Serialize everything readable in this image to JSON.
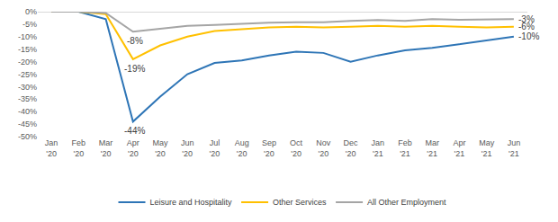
{
  "chart_data": {
    "type": "line",
    "categories": [
      "Jan '20",
      "Feb '20",
      "Mar '20",
      "Apr '20",
      "May '20",
      "Jun '20",
      "Jul '20",
      "Aug '20",
      "Sep '20",
      "Oct '20",
      "Nov '20",
      "Dec '20",
      "Jan '21",
      "Feb '21",
      "Mar '21",
      "Apr '21",
      "May '21",
      "Jun '21"
    ],
    "series": [
      {
        "name": "Leisure and Hospitality",
        "color": "#2e75b6",
        "values": [
          0,
          0,
          -3,
          -44,
          -34,
          -25,
          -20.5,
          -19.5,
          -17.5,
          -16,
          -16.5,
          -20,
          -17.5,
          -15.5,
          -14.5,
          -13,
          -11.5,
          -10
        ]
      },
      {
        "name": "Other Services",
        "color": "#ffc000",
        "values": [
          0,
          0,
          -1,
          -19,
          -13.5,
          -10,
          -7.7,
          -7,
          -6.3,
          -6,
          -6.3,
          -6,
          -5.7,
          -6,
          -5.7,
          -6,
          -6.3,
          -6
        ]
      },
      {
        "name": "All Other Employment",
        "color": "#a5a5a5",
        "values": [
          0,
          0,
          -0.5,
          -8,
          -6.8,
          -5.7,
          -5.3,
          -4.8,
          -4.4,
          -4.2,
          -4.2,
          -3.7,
          -3.3,
          -3.7,
          -3,
          -3.2,
          -3.1,
          -3
        ]
      }
    ],
    "ylim": [
      -50,
      0
    ],
    "yticks": [
      {
        "value": -50,
        "label": "-50%"
      },
      {
        "value": -45,
        "label": "-45%"
      },
      {
        "value": -40,
        "label": "-40%"
      },
      {
        "value": -35,
        "label": "-35%"
      },
      {
        "value": -30,
        "label": "-30%"
      },
      {
        "value": -25,
        "label": "-25%"
      },
      {
        "value": -20,
        "label": "-20%"
      },
      {
        "value": -15,
        "label": "-15%"
      },
      {
        "value": -10,
        "label": "-10%"
      },
      {
        "value": -5,
        "label": "-5%"
      },
      {
        "value": 0,
        "label": "0%"
      }
    ],
    "annotations": [
      {
        "x": "Apr '20",
        "y": -44,
        "text": "-44%"
      },
      {
        "x": "Apr '20",
        "y": -19,
        "text": "-19%"
      },
      {
        "x": "Apr '20",
        "y": -8,
        "text": "-8%"
      },
      {
        "x": "Jun '21",
        "y": -10,
        "text": "-10%"
      },
      {
        "x": "Jun '21",
        "y": -6,
        "text": "-6%"
      },
      {
        "x": "Jun '21",
        "y": -3,
        "text": "-3%"
      }
    ],
    "grid": false,
    "legend": "bottom"
  }
}
